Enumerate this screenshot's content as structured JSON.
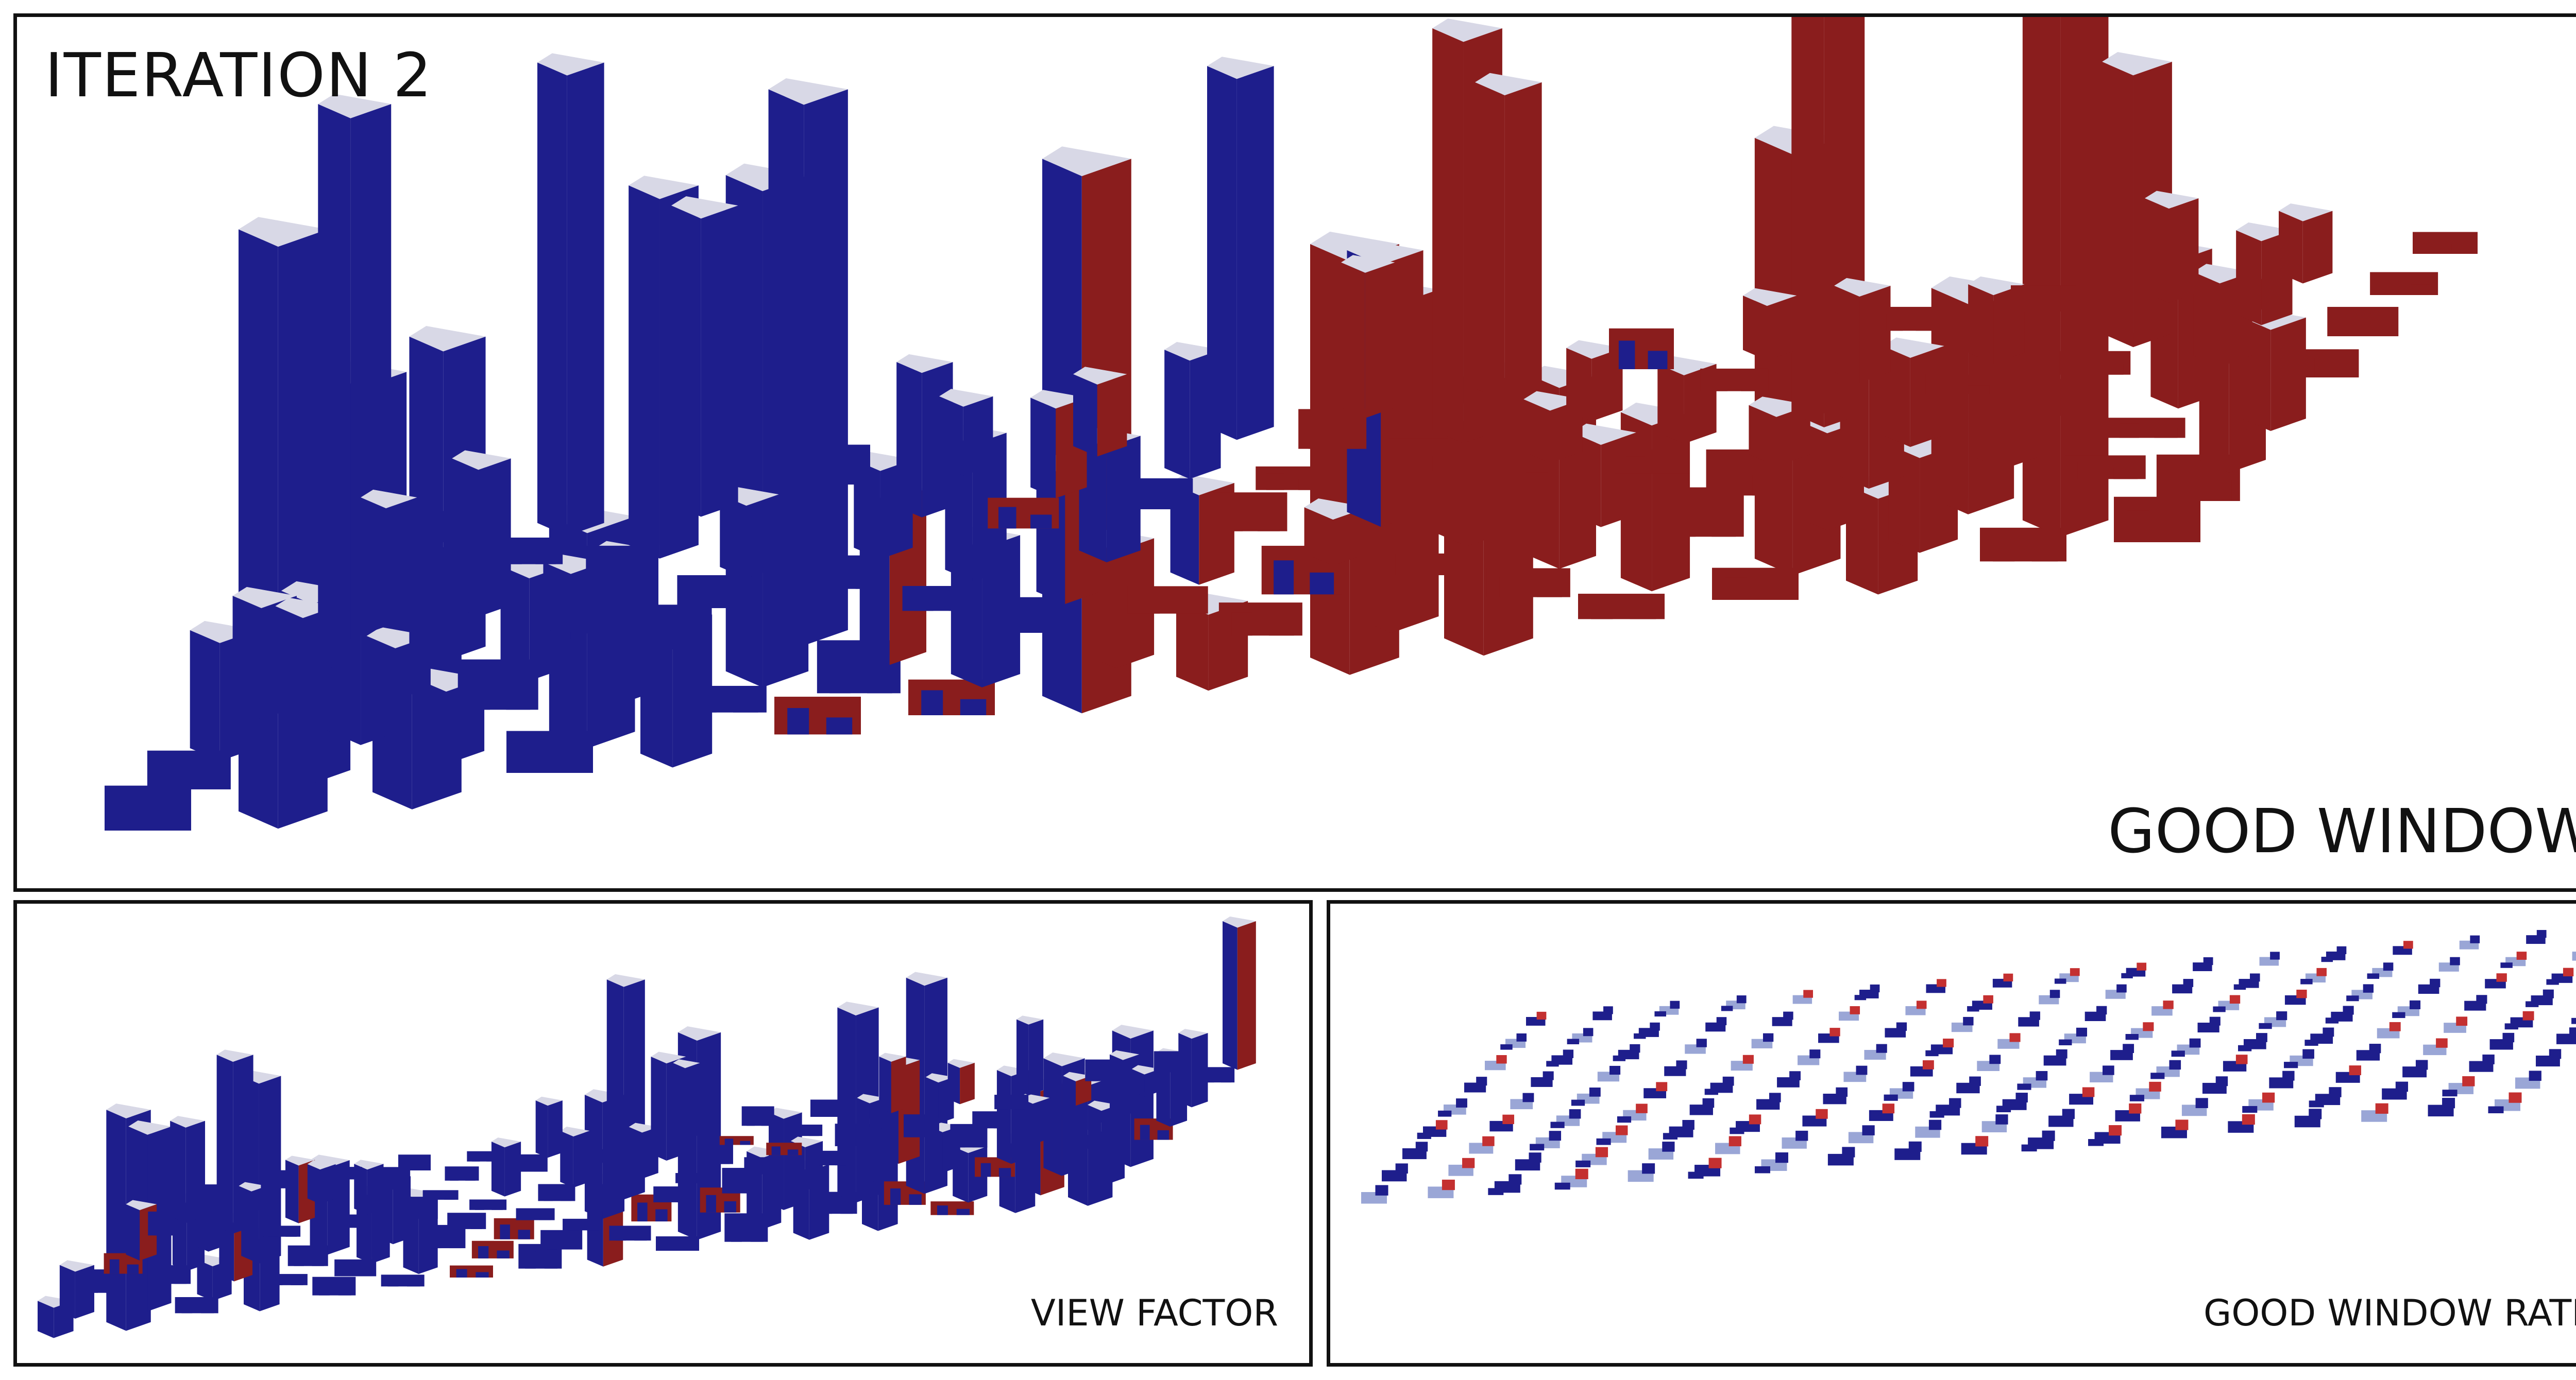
{
  "title": "ITERATION 2",
  "panels": {
    "main": {
      "caption": "GOOD WINDOW"
    },
    "left": {
      "caption": "VIEW FACTOR"
    },
    "right": {
      "caption": "GOOD WINDOW RATIO"
    }
  },
  "colors": {
    "blue": "#1e1e8c",
    "red": "#8a1d1d",
    "light_red": "#c43030",
    "light_blue": "#9aa6d6",
    "frame": "#111111"
  }
}
